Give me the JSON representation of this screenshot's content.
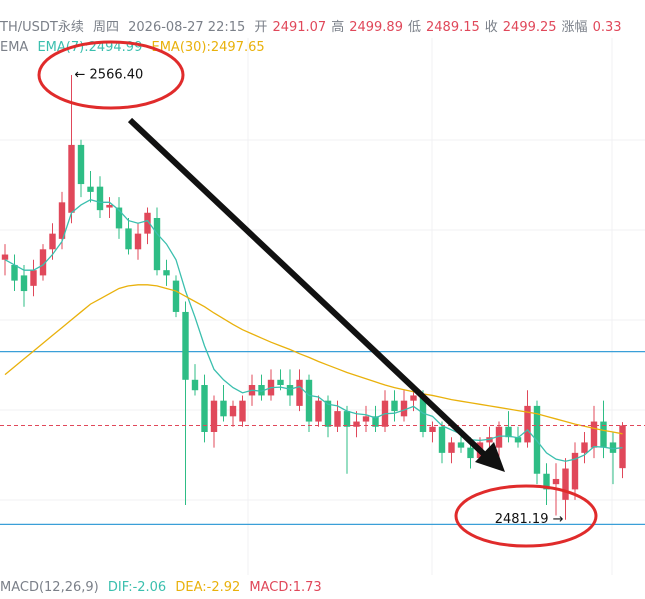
{
  "header": {
    "symbol": "TH/USDT永续",
    "weekday": "周四",
    "time": "2026-08-27 22:15",
    "fields": [
      {
        "label": "开",
        "value": "2491.07"
      },
      {
        "label": "高",
        "value": "2499.89"
      },
      {
        "label": "低",
        "value": "2489.15"
      },
      {
        "label": "收",
        "value": "2499.25"
      },
      {
        "label": "涨幅",
        "value": "0.33"
      }
    ]
  },
  "indicator": {
    "title": "EMA"
  },
  "macd": {
    "title": "MACD(12,26,9)",
    "dif": "DIF:-2.06",
    "dea": "DEA:-2.92",
    "macd": "MACD:1.73"
  },
  "chart_data": {
    "type": "candlestick",
    "up_color": "#e0485a",
    "down_color": "#2ebd85",
    "ylim": [
      2470.6,
      2573.1
    ],
    "candles": [
      [
        2531,
        2534,
        2528,
        2532
      ],
      [
        2530,
        2532,
        2525,
        2527
      ],
      [
        2528,
        2530,
        2522,
        2525
      ],
      [
        2526,
        2531,
        2524,
        2529
      ],
      [
        2528,
        2534,
        2527,
        2533
      ],
      [
        2533,
        2538,
        2531,
        2536
      ],
      [
        2535,
        2544,
        2533,
        2542
      ],
      [
        2540,
        2566.4,
        2538,
        2553
      ],
      [
        2553,
        2554,
        2543,
        2545.5
      ],
      [
        2545,
        2548,
        2542,
        2544
      ],
      [
        2545,
        2547,
        2539,
        2540.5
      ],
      [
        2541,
        2543,
        2539,
        2541.5
      ],
      [
        2541,
        2543,
        2535,
        2537
      ],
      [
        2537,
        2539,
        2532,
        2533
      ],
      [
        2533,
        2538,
        2531,
        2536
      ],
      [
        2536,
        2541,
        2534,
        2540
      ],
      [
        2539,
        2541,
        2528,
        2529
      ],
      [
        2529,
        2531,
        2526,
        2528
      ],
      [
        2527,
        2528,
        2520,
        2521
      ],
      [
        2521,
        2523,
        2484,
        2508
      ],
      [
        2508,
        2511,
        2505,
        2506
      ],
      [
        2507,
        2509,
        2496,
        2498
      ],
      [
        2498,
        2505,
        2495,
        2504
      ],
      [
        2504,
        2507,
        2500,
        2501
      ],
      [
        2501,
        2504,
        2499,
        2503
      ],
      [
        2500,
        2505,
        2499,
        2504
      ],
      [
        2505,
        2509,
        2503,
        2507
      ],
      [
        2507,
        2509,
        2504,
        2505
      ],
      [
        2505,
        2510,
        2504,
        2508
      ],
      [
        2508,
        2510,
        2506,
        2507
      ],
      [
        2507,
        2510,
        2503,
        2505
      ],
      [
        2503,
        2510,
        2502,
        2508
      ],
      [
        2508,
        2509,
        2498,
        2500
      ],
      [
        2500,
        2505,
        2499,
        2504
      ],
      [
        2504,
        2505,
        2497,
        2499
      ],
      [
        2499,
        2504,
        2498,
        2502
      ],
      [
        2502,
        2503,
        2490,
        2499
      ],
      [
        2499,
        2502,
        2497,
        2500
      ],
      [
        2500,
        2503,
        2498,
        2501
      ],
      [
        2501,
        2503,
        2498,
        2499
      ],
      [
        2499,
        2506,
        2498,
        2504
      ],
      [
        2504,
        2506,
        2500,
        2502
      ],
      [
        2501,
        2506,
        2500,
        2504
      ],
      [
        2504,
        2507,
        2502,
        2505
      ],
      [
        2505,
        2506,
        2497,
        2498
      ],
      [
        2498,
        2500,
        2496,
        2499
      ],
      [
        2499,
        2500,
        2492,
        2494
      ],
      [
        2494,
        2497,
        2492,
        2496
      ],
      [
        2496,
        2498,
        2494,
        2495
      ],
      [
        2495,
        2497,
        2491,
        2493
      ],
      [
        2493,
        2497,
        2492,
        2496
      ],
      [
        2496,
        2499,
        2494,
        2497
      ],
      [
        2495,
        2500,
        2493,
        2499
      ],
      [
        2499,
        2502,
        2496,
        2497
      ],
      [
        2497,
        2499,
        2495,
        2496
      ],
      [
        2496,
        2506,
        2495,
        2503
      ],
      [
        2503,
        2504,
        2488,
        2490
      ],
      [
        2490,
        2492,
        2484,
        2487
      ],
      [
        2488,
        2492,
        2482,
        2489
      ],
      [
        2485,
        2493,
        2481.19,
        2491
      ],
      [
        2487,
        2496,
        2485,
        2494
      ],
      [
        2494,
        2498,
        2492,
        2496
      ],
      [
        2495,
        2503,
        2493,
        2500
      ],
      [
        2500,
        2504,
        2493,
        2495
      ],
      [
        2496,
        2498,
        2488,
        2494
      ],
      [
        2491.07,
        2499.89,
        2489.15,
        2499.25
      ]
    ],
    "series": [
      {
        "name": "EMA(7):2494.99",
        "color": "#3bbfae",
        "values": [
          2531,
          2530,
          2529,
          2529,
          2530,
          2532,
          2534.5,
          2540,
          2541.5,
          2542.5,
          2542,
          2542,
          2540.5,
          2538.5,
          2538,
          2538.5,
          2536,
          2534,
          2531,
          2525,
          2520,
          2514.5,
          2510,
          2508,
          2506.5,
          2505.5,
          2506,
          2505.8,
          2506.5,
          2506.6,
          2506.2,
          2506.7,
          2505,
          2504.7,
          2503.3,
          2503,
          2502,
          2501.5,
          2501.3,
          2500.7,
          2501.5,
          2501.6,
          2502.2,
          2502.9,
          2501.6,
          2501,
          2499.2,
          2498.4,
          2497.6,
          2496.5,
          2496.4,
          2496.6,
          2497.2,
          2497.2,
          2496.9,
          2498.4,
          2496.3,
          2494,
          2492.8,
          2492.4,
          2492.8,
          2493.6,
          2495.2,
          2495.1,
          2494.8,
          2494.99
        ]
      },
      {
        "name": "EMA(30):2497.65",
        "color": "#e9b10c",
        "values": [
          2509,
          2510.5,
          2512,
          2513.5,
          2515,
          2516.5,
          2518,
          2519.5,
          2521,
          2522.5,
          2523.5,
          2524.5,
          2525.5,
          2526,
          2526.2,
          2526.2,
          2526,
          2525.5,
          2525,
          2524,
          2523,
          2522,
          2520.8,
          2519.7,
          2518.6,
          2517.6,
          2516.8,
          2516,
          2515.2,
          2514.5,
          2513.8,
          2513,
          2512.3,
          2511.5,
          2510.8,
          2510.1,
          2509.4,
          2508.8,
          2508.2,
          2507.6,
          2507,
          2506.5,
          2506.1,
          2505.7,
          2505.3,
          2505,
          2504.6,
          2504.2,
          2503.9,
          2503.6,
          2503.3,
          2503,
          2502.7,
          2502.4,
          2502.1,
          2501.8,
          2501.5,
          2501,
          2500.5,
          2500,
          2499.5,
          2499.1,
          2498.7,
          2498.3,
          2498,
          2497.65
        ]
      }
    ],
    "hlines": [
      2513.4,
      2480.3
    ],
    "annotations": [
      "← 2566.40",
      "2481.19 →"
    ]
  }
}
